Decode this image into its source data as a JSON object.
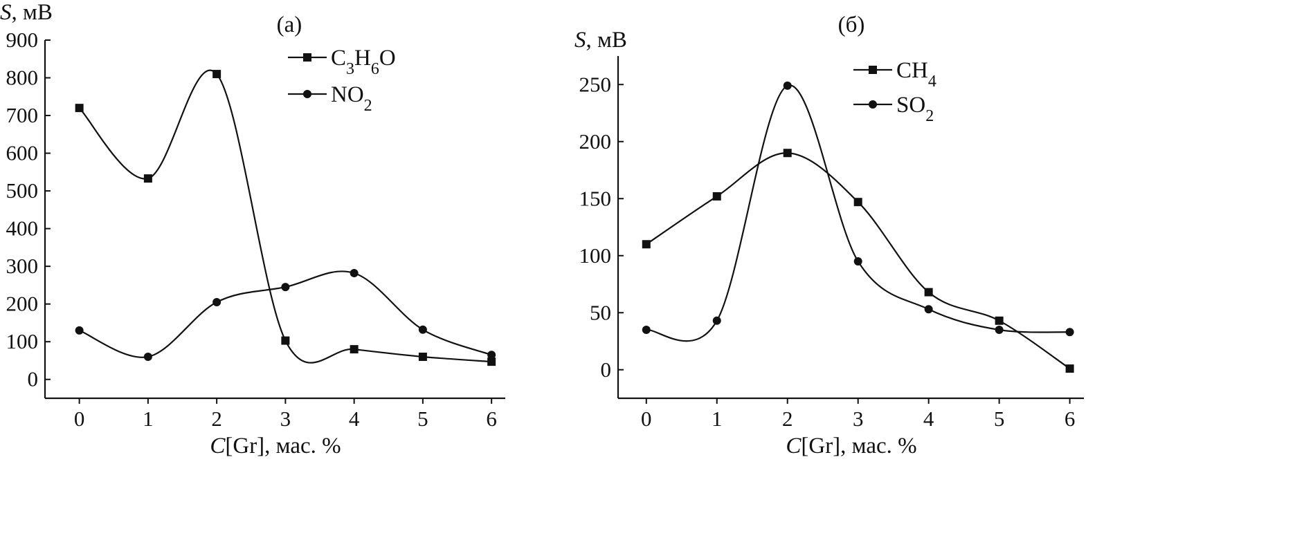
{
  "chart_data": [
    {
      "type": "line",
      "panel_label": "(а)",
      "xlabel": "C[Gr], мас. %",
      "ylabel": "S, мВ",
      "xlim": [
        -0.5,
        6.2
      ],
      "ylim": [
        -50,
        900
      ],
      "x_ticks": [
        "0",
        "1",
        "2",
        "3",
        "4",
        "5",
        "6"
      ],
      "y_ticks": [
        "0",
        "100",
        "200",
        "300",
        "400",
        "500",
        "600",
        "700",
        "800",
        "900"
      ],
      "legend_position": "top-right",
      "x": [
        0,
        1,
        2,
        3,
        4,
        5,
        6
      ],
      "series": [
        {
          "name": "C3H6O",
          "marker": "square",
          "values": [
            720,
            533,
            810,
            103,
            80,
            60,
            47
          ]
        },
        {
          "name": "NO2",
          "marker": "circle",
          "values": [
            130,
            60,
            205,
            245,
            282,
            132,
            65
          ]
        }
      ]
    },
    {
      "type": "line",
      "panel_label": "(б)",
      "xlabel": "C[Gr], мас. %",
      "ylabel": "S, мВ",
      "xlim": [
        -0.4,
        6.2
      ],
      "ylim": [
        -25,
        275
      ],
      "x_ticks": [
        "0",
        "1",
        "2",
        "3",
        "4",
        "5",
        "6"
      ],
      "y_ticks": [
        "0",
        "50",
        "100",
        "150",
        "200",
        "250"
      ],
      "legend_position": "top-right",
      "x": [
        0,
        1,
        2,
        3,
        4,
        5,
        6
      ],
      "series": [
        {
          "name": "CH4",
          "marker": "square",
          "values": [
            110,
            152,
            190,
            147,
            68,
            43,
            1
          ]
        },
        {
          "name": "SO2",
          "marker": "circle",
          "values": [
            35,
            43,
            249,
            95,
            53,
            35,
            33
          ]
        }
      ]
    }
  ]
}
